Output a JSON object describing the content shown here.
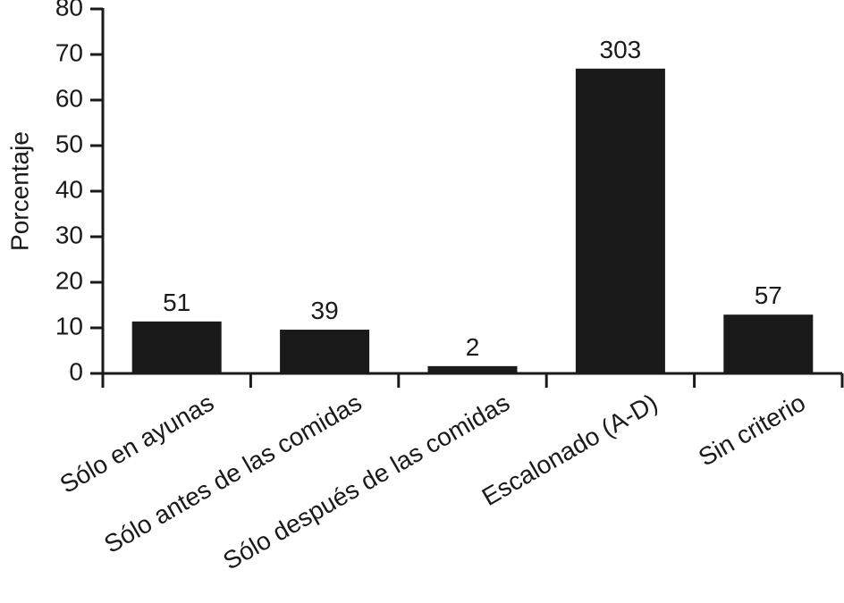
{
  "chart_data": {
    "type": "bar",
    "y_label": "Porcentaje",
    "categories": [
      "Sólo en ayunas",
      "Sólo antes de las comidas",
      "Sólo después de las comidas",
      "Escalonado (A-D)",
      "Sin criterio"
    ],
    "values": [
      11.4,
      9.6,
      1.6,
      66.9,
      12.9
    ],
    "bar_labels": [
      51,
      39,
      2,
      303,
      57
    ],
    "color": "#1a1a1a",
    "ylim": [
      0,
      80
    ],
    "yticks": [
      0,
      10,
      20,
      30,
      40,
      50,
      60,
      70,
      80
    ],
    "grid": false
  }
}
